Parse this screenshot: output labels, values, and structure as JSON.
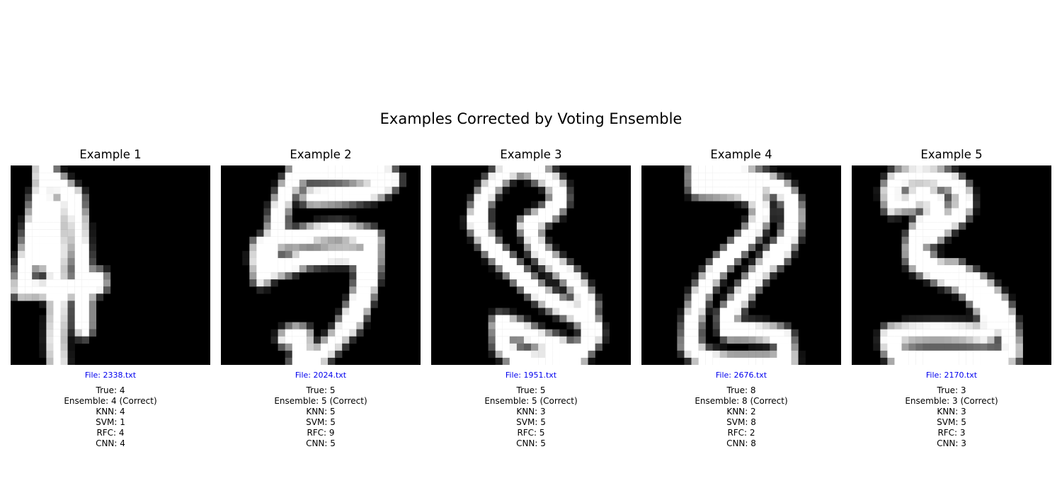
{
  "figure_title": "Examples Corrected by Voting Ensemble",
  "panels": [
    {
      "title": "Example 1",
      "file": "File: 2338.txt",
      "lines": [
        "True: 4",
        "Ensemble: 4 (Correct)",
        "KNN: 4",
        "SVM: 1",
        "RFC: 4",
        "CNN: 4"
      ],
      "strokes": [
        [
          [
            4.6,
            0
          ],
          [
            4.6,
            3.0
          ],
          [
            3.9,
            5.5
          ],
          [
            3.3,
            8.5
          ],
          [
            2.7,
            11.5
          ],
          [
            2.0,
            14.5
          ],
          [
            1.5,
            17.3
          ]
        ],
        [
          [
            1.8,
            17.3
          ],
          [
            5.5,
            17.5
          ],
          [
            9.5,
            17.2
          ],
          [
            12.3,
            16.8
          ],
          [
            12.3,
            15.8
          ]
        ],
        [
          [
            5.6,
            5.8
          ],
          [
            5.0,
            8.5
          ],
          [
            4.6,
            11.5
          ],
          [
            4.6,
            13.5
          ]
        ],
        [
          [
            5.6,
            5.8
          ],
          [
            6.4,
            6.0
          ],
          [
            6.4,
            9.0
          ],
          [
            6.6,
            12.0
          ],
          [
            6.4,
            15.5
          ],
          [
            6.6,
            19.5
          ],
          [
            6.4,
            24.5
          ],
          [
            6.6,
            28
          ]
        ],
        [
          [
            4.8,
            1.2
          ],
          [
            6.2,
            2.0
          ],
          [
            7.8,
            3.5
          ],
          [
            9.0,
            4.5
          ]
        ],
        [
          [
            8.6,
            4.5
          ],
          [
            9.4,
            7.0
          ],
          [
            9.6,
            10.5
          ],
          [
            9.9,
            13.5
          ],
          [
            10.2,
            17.0
          ],
          [
            10.2,
            20.0
          ],
          [
            10.2,
            23.0
          ]
        ]
      ]
    },
    {
      "title": "Example 2",
      "file": "File: 2024.txt",
      "lines": [
        "True: 5",
        "Ensemble: 5 (Correct)",
        "KNN: 5",
        "SVM: 5",
        "RFC: 9",
        "CNN: 5"
      ],
      "strokes": [
        [
          [
            11.0,
            0.8
          ],
          [
            17.5,
            0.8
          ],
          [
            22.5,
            0.8
          ],
          [
            24.0,
            2.0
          ],
          [
            22.0,
            3.5
          ],
          [
            17.0,
            4.2
          ],
          [
            12.5,
            4.4
          ]
        ],
        [
          [
            11.0,
            0.8
          ],
          [
            9.5,
            3.0
          ],
          [
            8.4,
            5.5
          ],
          [
            7.8,
            8.5
          ],
          [
            7.2,
            11.0
          ],
          [
            6.6,
            13.0
          ],
          [
            6.0,
            14.5
          ],
          [
            5.7,
            15.8
          ]
        ],
        [
          [
            8.2,
            10.0
          ],
          [
            10.0,
            10.4
          ],
          [
            13.0,
            9.5
          ],
          [
            16.5,
            9.2
          ],
          [
            19.5,
            9.7
          ],
          [
            21.2,
            10.2
          ]
        ],
        [
          [
            5.6,
            11.2
          ],
          [
            5.4,
            13.5
          ],
          [
            6.0,
            14.7
          ],
          [
            8.5,
            14.4
          ],
          [
            12.0,
            13.0
          ],
          [
            15.5,
            12.6
          ],
          [
            18.5,
            12.6
          ],
          [
            20.2,
            13.5
          ],
          [
            20.2,
            16.0
          ],
          [
            19.6,
            18.5
          ],
          [
            18.4,
            21.0
          ],
          [
            17.0,
            23.5
          ],
          [
            15.2,
            25.5
          ],
          [
            13.0,
            27.5
          ],
          [
            11.0,
            28
          ]
        ],
        [
          [
            21.2,
            10.4
          ],
          [
            21.3,
            13.0
          ],
          [
            20.9,
            15.5
          ],
          [
            20.2,
            18.0
          ],
          [
            19.2,
            20.5
          ],
          [
            18.2,
            22.5
          ]
        ],
        [
          [
            9.2,
            24.3
          ],
          [
            10.3,
            23.6
          ],
          [
            11.5,
            23.8
          ],
          [
            11.4,
            25.5
          ],
          [
            11.2,
            27.5
          ]
        ]
      ]
    },
    {
      "title": "Example 3",
      "file": "File: 1951.txt",
      "lines": [
        "True: 5",
        "Ensemble: 5 (Correct)",
        "KNN: 3",
        "SVM: 5",
        "RFC: 5",
        "CNN: 5"
      ],
      "strokes": [
        [
          [
            13.0,
            0
          ],
          [
            10.5,
            0.8
          ],
          [
            8.7,
            2.5
          ],
          [
            7.4,
            4.5
          ],
          [
            6.6,
            6.5
          ],
          [
            6.4,
            8.3
          ]
        ],
        [
          [
            14.5,
            0.9
          ],
          [
            16.5,
            1.8
          ],
          [
            17.8,
            3.2
          ],
          [
            18.0,
            5.0
          ],
          [
            16.8,
            6.5
          ],
          [
            15.0,
            7.5
          ],
          [
            13.5,
            8.5
          ]
        ],
        [
          [
            6.6,
            7.5
          ],
          [
            7.2,
            9.6
          ],
          [
            8.4,
            11.5
          ],
          [
            9.9,
            13.0
          ],
          [
            11.5,
            14.6
          ],
          [
            13.2,
            16.2
          ],
          [
            15.0,
            17.8
          ],
          [
            17.0,
            19.2
          ],
          [
            19.0,
            20.2
          ],
          [
            21.2,
            21.2
          ],
          [
            22.5,
            22.8
          ]
        ],
        [
          [
            13.8,
            8.3
          ],
          [
            14.3,
            10.0
          ],
          [
            14.8,
            11.5
          ],
          [
            16.0,
            12.8
          ],
          [
            17.5,
            14.0
          ],
          [
            19.5,
            15.6
          ],
          [
            21.0,
            17.5
          ],
          [
            22.2,
            19.8
          ]
        ],
        [
          [
            22.4,
            22.2
          ],
          [
            22.8,
            24.0
          ],
          [
            21.2,
            25.8
          ],
          [
            19.5,
            27.0
          ],
          [
            18.8,
            28
          ]
        ],
        [
          [
            9.7,
            22.0
          ],
          [
            12.0,
            22.8
          ],
          [
            15.0,
            24.3
          ],
          [
            18.5,
            25.5
          ]
        ],
        [
          [
            9.8,
            23.0
          ],
          [
            10.0,
            25.5
          ],
          [
            12.0,
            27.0
          ],
          [
            15.0,
            27.5
          ],
          [
            18.0,
            27.4
          ],
          [
            20.5,
            27.0
          ]
        ]
      ]
    },
    {
      "title": "Example 4",
      "file": "File: 2676.txt",
      "lines": [
        "True: 8",
        "Ensemble: 8 (Correct)",
        "KNN: 2",
        "SVM: 8",
        "RFC: 2",
        "CNN: 8"
      ],
      "strokes": [
        [
          [
            7.9,
            0
          ],
          [
            7.8,
            1.5
          ],
          [
            7.9,
            3.2
          ],
          [
            10.5,
            3.3
          ],
          [
            14.0,
            3.5
          ],
          [
            16.0,
            4.2
          ]
        ],
        [
          [
            9.5,
            0.9
          ],
          [
            14.0,
            1.2
          ],
          [
            17.5,
            2.2
          ],
          [
            20.0,
            3.5
          ],
          [
            21.0,
            5.0
          ],
          [
            21.4,
            7.0
          ],
          [
            21.0,
            9.5
          ],
          [
            20.0,
            11.5
          ],
          [
            19.0,
            13.0
          ]
        ],
        [
          [
            16.6,
            5.2
          ],
          [
            16.8,
            7.2
          ],
          [
            15.5,
            9.5
          ],
          [
            14.0,
            11.0
          ],
          [
            12.5,
            12.5
          ],
          [
            11.0,
            14.0
          ],
          [
            9.5,
            16.0
          ],
          [
            8.2,
            18.2
          ],
          [
            7.5,
            20.5
          ],
          [
            7.0,
            22.7
          ],
          [
            6.9,
            25.0
          ]
        ],
        [
          [
            19.0,
            12.0
          ],
          [
            17.5,
            14.0
          ],
          [
            16.2,
            15.5
          ],
          [
            15.0,
            17.0
          ],
          [
            14.0,
            18.5
          ],
          [
            13.0,
            19.8
          ],
          [
            12.0,
            21.0
          ],
          [
            12.2,
            23.0
          ]
        ],
        [
          [
            12.5,
            23.2
          ],
          [
            15.5,
            23.3
          ],
          [
            18.5,
            23.6
          ],
          [
            20.0,
            24.0
          ],
          [
            20.3,
            26.0
          ],
          [
            20.6,
            27.3
          ]
        ],
        [
          [
            6.9,
            25.5
          ],
          [
            8.5,
            27.0
          ],
          [
            12.0,
            27.7
          ],
          [
            16.0,
            27.7
          ],
          [
            19.0,
            27.7
          ]
        ]
      ]
    },
    {
      "title": "Example 5",
      "file": "File: 2170.txt",
      "lines": [
        "True: 3",
        "Ensemble: 3 (Correct)",
        "KNN: 3",
        "SVM: 5",
        "RFC: 3",
        "CNN: 3"
      ],
      "strokes": [
        [
          [
            5.8,
            5.8
          ],
          [
            5.4,
            3.5
          ],
          [
            6.4,
            1.8
          ],
          [
            9.0,
            1.3
          ],
          [
            12.0,
            1.5
          ],
          [
            14.0,
            2.2
          ],
          [
            15.5,
            3.5
          ],
          [
            15.8,
            5.5
          ],
          [
            15.0,
            7.0
          ],
          [
            13.5,
            8.0
          ],
          [
            12.4,
            9.0
          ],
          [
            11.2,
            10.0
          ]
        ],
        [
          [
            8.0,
            5.5
          ],
          [
            9.0,
            4.2
          ],
          [
            11.0,
            4.3
          ],
          [
            12.2,
            5.3
          ],
          [
            11.5,
            7.0
          ],
          [
            10.0,
            8.5
          ]
        ],
        [
          [
            10.0,
            8.5
          ],
          [
            9.0,
            10.0
          ],
          [
            8.6,
            12.0
          ],
          [
            9.0,
            13.5
          ],
          [
            10.5,
            14.5
          ],
          [
            12.5,
            14.7
          ],
          [
            14.5,
            14.8
          ]
        ],
        [
          [
            10.0,
            12.8
          ],
          [
            11.0,
            14.0
          ],
          [
            12.5,
            15.5
          ],
          [
            14.3,
            16.0
          ],
          [
            16.0,
            17.0
          ],
          [
            17.5,
            18.5
          ],
          [
            18.6,
            20.0
          ],
          [
            19.5,
            21.5
          ],
          [
            20.0,
            22.5
          ]
        ],
        [
          [
            14.3,
            14.8
          ],
          [
            16.0,
            15.6
          ],
          [
            18.0,
            16.6
          ],
          [
            19.5,
            18.0
          ],
          [
            20.8,
            19.5
          ],
          [
            21.6,
            21.2
          ],
          [
            22.0,
            23.0
          ],
          [
            22.4,
            25.0
          ],
          [
            22.5,
            26.5
          ]
        ],
        [
          [
            5.6,
            23.7
          ],
          [
            8.0,
            23.4
          ],
          [
            12.0,
            23.3
          ],
          [
            16.0,
            23.4
          ],
          [
            19.0,
            23.7
          ]
        ],
        [
          [
            5.4,
            24.0
          ],
          [
            5.4,
            25.5
          ],
          [
            6.2,
            26.7
          ],
          [
            10.0,
            27.0
          ],
          [
            14.0,
            27.0
          ],
          [
            18.0,
            27.0
          ],
          [
            21.0,
            27.1
          ]
        ]
      ]
    }
  ]
}
